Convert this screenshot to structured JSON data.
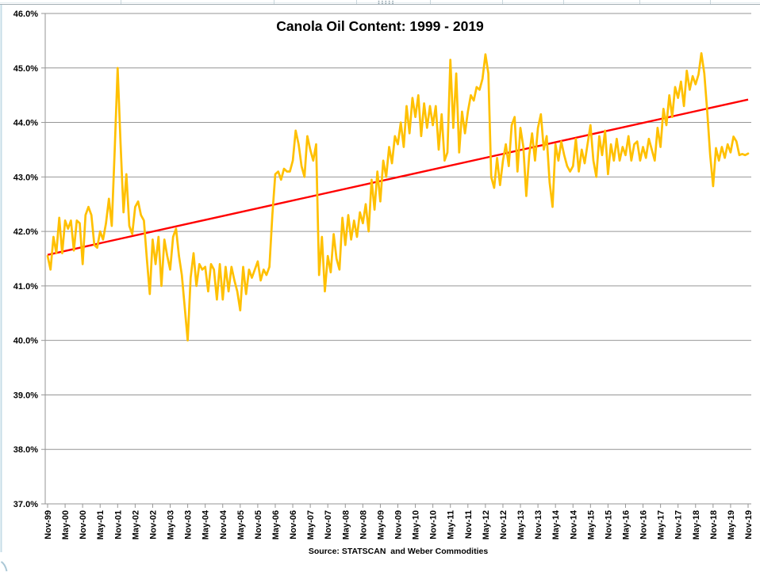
{
  "chart_data": {
    "type": "line",
    "title": "Canola Oil Content: 1999 - 2019",
    "source_note": "Source: STATSCAN  and Weber Commodities",
    "grid": true,
    "legend": false,
    "y_axis": {
      "min": 37,
      "max": 46,
      "step": 1,
      "tick_labels": [
        "37.0%",
        "38.0%",
        "39.0%",
        "40.0%",
        "41.0%",
        "42.0%",
        "43.0%",
        "44.0%",
        "45.0%",
        "46.0%"
      ]
    },
    "x_axis": {
      "tick_labels": [
        "Nov-99",
        "May-00",
        "Nov-00",
        "May-01",
        "Nov-01",
        "May-02",
        "Nov-02",
        "May-03",
        "Nov-03",
        "May-04",
        "Nov-04",
        "May-05",
        "Nov-05",
        "May-06",
        "Nov-06",
        "May-07",
        "Nov-07",
        "May-08",
        "Nov-08",
        "May-09",
        "Nov-09",
        "May-10",
        "Nov-10",
        "May-11",
        "Nov-11",
        "May-12",
        "Nov-12",
        "May-13",
        "Nov-13",
        "May-14",
        "Nov-14",
        "May-15",
        "Nov-15",
        "May-16",
        "Nov-16",
        "May-17",
        "Nov-17",
        "May-18",
        "Nov-18",
        "May-19",
        "Nov-19"
      ],
      "months_per_tick": 6
    },
    "colors": {
      "series": "#FFC000",
      "trendline": "#FF0000",
      "gridline": "#969696",
      "text": "#000000"
    },
    "series": [
      {
        "name": "Canola oil content",
        "unit": "%",
        "frequency": "monthly",
        "start": "Nov-99",
        "end": "Nov-19",
        "values": [
          41.55,
          41.3,
          41.9,
          41.6,
          42.25,
          41.6,
          42.2,
          42.05,
          42.2,
          41.65,
          42.2,
          42.15,
          41.4,
          42.3,
          42.45,
          42.3,
          41.75,
          41.7,
          42.0,
          41.85,
          42.15,
          42.6,
          42.1,
          43.5,
          45.0,
          43.6,
          42.35,
          43.05,
          42.1,
          41.95,
          42.45,
          42.55,
          42.3,
          42.2,
          41.5,
          40.85,
          41.85,
          41.4,
          41.9,
          41.0,
          41.85,
          41.55,
          41.3,
          41.9,
          42.05,
          41.55,
          41.2,
          40.6,
          40.0,
          41.15,
          41.6,
          41.0,
          41.4,
          41.3,
          41.35,
          40.9,
          41.4,
          41.3,
          40.75,
          41.4,
          40.75,
          41.35,
          40.9,
          41.35,
          41.1,
          40.9,
          40.55,
          41.35,
          40.85,
          41.3,
          41.15,
          41.3,
          41.45,
          41.1,
          41.3,
          41.2,
          41.35,
          42.3,
          43.05,
          43.1,
          42.95,
          43.15,
          43.1,
          43.1,
          43.3,
          43.85,
          43.6,
          43.2,
          43.0,
          43.75,
          43.5,
          43.3,
          43.6,
          41.2,
          41.9,
          40.9,
          41.55,
          41.25,
          41.95,
          41.5,
          41.3,
          42.25,
          41.75,
          42.3,
          41.85,
          42.2,
          41.9,
          42.35,
          42.15,
          42.5,
          42.0,
          42.95,
          42.4,
          43.1,
          42.55,
          43.3,
          43.0,
          43.55,
          43.25,
          43.75,
          43.6,
          44.0,
          43.55,
          44.3,
          43.8,
          44.45,
          44.1,
          44.5,
          43.75,
          44.35,
          43.9,
          44.3,
          43.95,
          44.3,
          43.5,
          44.15,
          43.3,
          43.45,
          45.15,
          43.9,
          44.9,
          43.45,
          44.2,
          43.8,
          44.2,
          44.5,
          44.4,
          44.65,
          44.6,
          44.8,
          45.25,
          44.9,
          43.0,
          42.8,
          43.35,
          42.85,
          43.3,
          43.6,
          43.2,
          43.95,
          44.1,
          43.1,
          43.9,
          43.55,
          42.65,
          43.4,
          43.8,
          43.3,
          43.9,
          44.15,
          43.5,
          43.75,
          42.9,
          42.45,
          43.6,
          43.3,
          43.65,
          43.4,
          43.2,
          43.1,
          43.2,
          43.7,
          43.1,
          43.5,
          43.25,
          43.6,
          43.95,
          43.3,
          43.0,
          43.75,
          43.4,
          43.85,
          43.05,
          43.6,
          43.3,
          43.7,
          43.3,
          43.55,
          43.4,
          43.75,
          43.3,
          43.6,
          43.65,
          43.3,
          43.55,
          43.35,
          43.7,
          43.5,
          43.3,
          43.9,
          43.55,
          44.25,
          43.95,
          44.5,
          44.1,
          44.65,
          44.45,
          44.75,
          44.3,
          44.95,
          44.6,
          44.85,
          44.7,
          44.88,
          45.27,
          44.9,
          44.2,
          43.4,
          42.83,
          43.53,
          43.3,
          43.55,
          43.35,
          43.6,
          43.45,
          43.74,
          43.65,
          43.4,
          43.42,
          43.4,
          43.43
        ]
      }
    ],
    "trendline": {
      "type": "linear",
      "start_value": 41.57,
      "end_value": 44.42
    }
  }
}
